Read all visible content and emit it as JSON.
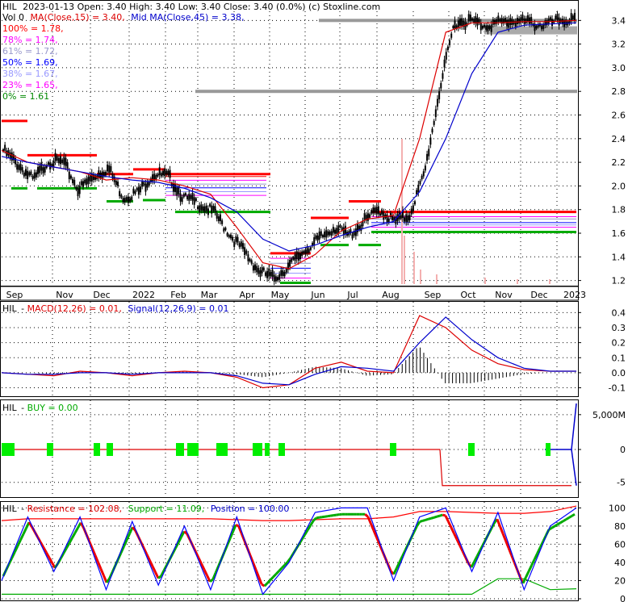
{
  "header": {
    "symbol": "HIL",
    "summary": "2023-01-13 Open: 3.40  High: 3.40  Low: 3.40  Close: 3.40 (0.0%) (c) Stoxline.com",
    "vol_label": "Vol 0",
    "ma15_label": "MA(Close,15) = 3.40,",
    "ma45_label": "Mid MA(Close,45) = 3.38,"
  },
  "fib_levels": [
    {
      "label": "100% = 1.78,",
      "color": "#ff0000"
    },
    {
      "label": "78% = 1.74,",
      "color": "#ff00ff"
    },
    {
      "label": "61% = 1.72,",
      "color": "#9999cc"
    },
    {
      "label": "50% = 1.69,",
      "color": "#0000ff"
    },
    {
      "label": "38% = 1.67,",
      "color": "#9999ff"
    },
    {
      "label": "23% = 1.65,",
      "color": "#ff00ff"
    },
    {
      "label": "0% = 1.61",
      "color": "#008800"
    }
  ],
  "colors": {
    "ma15": "#dd0000",
    "ma45": "#0000cc",
    "resistance": "#ff0000",
    "support": "#00aa00",
    "position": "#0000ff",
    "buy_marker": "#00ee00",
    "grid": "#000000"
  },
  "chart_data": [
    {
      "type": "candlestick",
      "panel": "price",
      "x_labels": [
        "Sep",
        "Nov",
        "Dec",
        "2022",
        "Feb",
        "Mar",
        "Apr",
        "May",
        "Jun",
        "Jul",
        "Aug",
        "Sep",
        "Oct",
        "Nov",
        "Dec",
        "2023"
      ],
      "y_ticks": [
        "3.4",
        "3.2",
        "3.0",
        "2.8",
        "2.6",
        "2.4",
        "2.2",
        "2.0",
        "1.8",
        "1.6",
        "1.4",
        "1.2"
      ],
      "ylim": [
        1.17,
        3.45
      ],
      "series": [
        {
          "name": "MA(Close,15)",
          "values": [
            2.3,
            2.2,
            2.16,
            2.12,
            2.05,
            2.07,
            2.05,
            2.0,
            1.93,
            1.65,
            1.35,
            1.3,
            1.42,
            1.62,
            1.72,
            1.75,
            2.4,
            3.3,
            3.38,
            3.38,
            3.39,
            3.39,
            3.4
          ]
        },
        {
          "name": "Mid MA(Close,45)",
          "values": [
            2.25,
            2.2,
            2.16,
            2.12,
            2.08,
            2.05,
            2.03,
            1.98,
            1.9,
            1.78,
            1.55,
            1.45,
            1.5,
            1.58,
            1.65,
            1.7,
            1.95,
            2.4,
            2.95,
            3.3,
            3.36,
            3.37,
            3.38
          ]
        }
      ],
      "price_path": [
        2.3,
        2.18,
        2.05,
        2.21,
        2.2,
        1.97,
        2.08,
        2.15,
        1.9,
        1.95,
        2.1,
        2.08,
        1.9,
        1.85,
        1.78,
        1.6,
        1.45,
        1.28,
        1.22,
        1.32,
        1.45,
        1.55,
        1.65,
        1.58,
        1.7,
        1.8,
        1.7,
        1.75,
        2.1,
        2.8,
        3.38,
        3.4,
        3.36,
        3.38,
        3.4,
        3.38,
        3.36,
        3.4,
        3.4
      ],
      "resistance_segments": [
        [
          2.55,
          2.26,
          2.1,
          2.14,
          2.1,
          1.43,
          1.73,
          1.87,
          1.78
        ]
      ],
      "support_segments": [
        [
          1.98,
          1.98,
          1.87,
          1.88,
          1.78,
          1.18,
          1.5,
          1.5,
          1.61
        ]
      ]
    },
    {
      "type": "line",
      "panel": "macd",
      "title": "MACD(12,26) = 0.01,",
      "signal_title": "Signal(12,26,9) = 0.01",
      "y_ticks": [
        "0.4",
        "0.3",
        "0.2",
        "0.1",
        "0.0",
        "-0.1"
      ],
      "ylim": [
        -0.14,
        0.45
      ],
      "series": [
        {
          "name": "MACD(12,26)",
          "values": [
            0.0,
            -0.01,
            -0.02,
            0.01,
            0.0,
            -0.02,
            0.0,
            0.01,
            0.0,
            -0.03,
            -0.1,
            -0.08,
            0.03,
            0.07,
            0.01,
            0.0,
            0.38,
            0.3,
            0.15,
            0.06,
            0.02,
            0.01,
            0.01
          ]
        },
        {
          "name": "Signal(12,26,9)",
          "values": [
            0.0,
            -0.01,
            -0.01,
            0.0,
            0.0,
            -0.01,
            0.0,
            0.0,
            0.0,
            -0.02,
            -0.07,
            -0.08,
            -0.01,
            0.04,
            0.03,
            0.01,
            0.2,
            0.37,
            0.22,
            0.1,
            0.03,
            0.01,
            0.01
          ]
        }
      ]
    },
    {
      "type": "line",
      "panel": "buy",
      "title": "BUY = 0.00",
      "y_ticks": [
        "5,000M",
        "0",
        "-5"
      ],
      "ylim": [
        -7,
        7
      ],
      "values_shape": [
        0,
        0,
        0,
        0,
        0,
        0,
        0,
        0,
        0,
        0,
        0,
        0,
        0,
        0,
        0,
        0,
        0,
        -5.5,
        -5.5,
        -5.5,
        -5.5,
        -5.5,
        7
      ]
    },
    {
      "type": "line",
      "panel": "oscillator",
      "title": "Resistance = 102.08,",
      "support_title": "Support = 11.09,",
      "position_title": "Position = 100.00",
      "y_ticks": [
        "100",
        "80",
        "60",
        "40",
        "20",
        "0"
      ],
      "ylim": [
        0,
        103
      ],
      "series": [
        {
          "name": "Resistance",
          "values": [
            86,
            88,
            88,
            88,
            88,
            88,
            88,
            88,
            88,
            87,
            86,
            86,
            87,
            88,
            88,
            90,
            96,
            96,
            95,
            94,
            94,
            96,
            102
          ]
        },
        {
          "name": "Support",
          "values": [
            5,
            5,
            5,
            5,
            5,
            5,
            5,
            5,
            5,
            5,
            5,
            5,
            5,
            5,
            5,
            5,
            5,
            5,
            5,
            22,
            22,
            10,
            11
          ]
        },
        {
          "name": "Position",
          "values": [
            20,
            90,
            30,
            90,
            10,
            85,
            15,
            80,
            10,
            90,
            5,
            40,
            95,
            100,
            100,
            20,
            90,
            100,
            30,
            95,
            10,
            80,
            100
          ]
        }
      ]
    }
  ]
}
